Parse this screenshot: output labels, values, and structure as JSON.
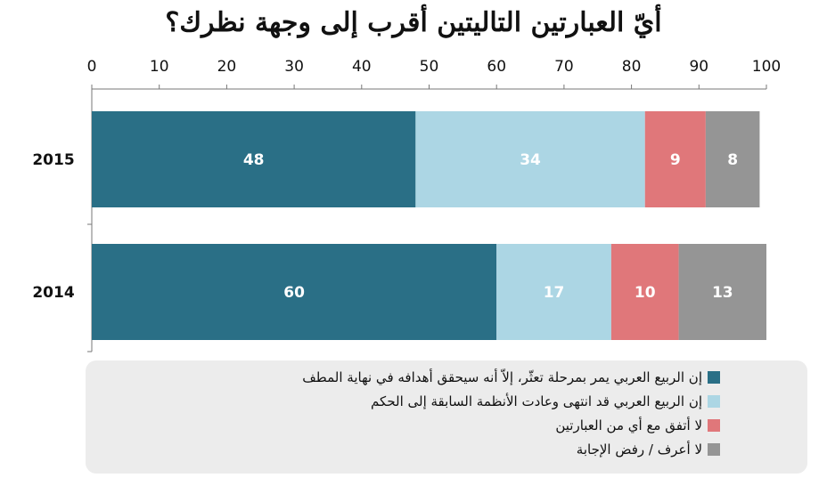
{
  "chart_data": {
    "type": "bar",
    "orientation": "horizontal",
    "stacked": true,
    "title": "أيّ العبارتين التاليتين أقرب إلى وجهة نظرك؟",
    "categories": [
      "2015",
      "2014"
    ],
    "xlim": [
      0,
      100
    ],
    "xticks": [
      "0",
      "10",
      "20",
      "30",
      "40",
      "50",
      "60",
      "70",
      "80",
      "90",
      "100"
    ],
    "series": [
      {
        "name": "إن الربيع العربي يمر بمرحلة تعثّر، إلاّ أنه سيحقق أهدافه في نهاية المطف",
        "color": "#2a6f86",
        "values": [
          48,
          60
        ]
      },
      {
        "name": "إن الربيع العربي قد انتهى وعادت الأنظمة السابقة إلى الحكم",
        "color": "#acd6e4",
        "values": [
          34,
          17
        ]
      },
      {
        "name": "لا أتفق مع أي من العبارتين",
        "color": "#e0777a",
        "values": [
          9,
          10
        ]
      },
      {
        "name": "لا أعرف / رفض الإجابة",
        "color": "#959595",
        "values": [
          8,
          13
        ]
      }
    ],
    "xaxis_position": "top",
    "legend_position": "bottom",
    "grid": false
  }
}
